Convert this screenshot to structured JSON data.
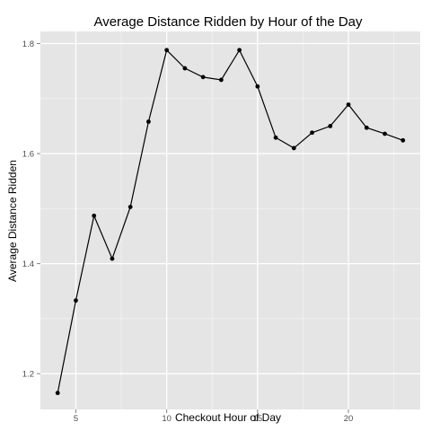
{
  "chart_data": {
    "type": "line",
    "title": "Average Distance Ridden by Hour of the Day",
    "xlabel": "Checkout Hour of Day",
    "ylabel": "Average Distance Ridden",
    "xlim": [
      3.05,
      23.95
    ],
    "ylim": [
      1.135,
      1.822
    ],
    "x_ticks": [
      5,
      10,
      15,
      20
    ],
    "y_ticks": [
      1.2,
      1.4,
      1.6,
      1.8
    ],
    "x_tick_labels": [
      "5",
      "10",
      "15",
      "20"
    ],
    "y_tick_labels": [
      "1.2",
      "1.4",
      "1.6",
      "1.8"
    ],
    "grid": true,
    "series": [
      {
        "x": [
          4,
          5,
          6,
          7,
          8,
          9,
          10,
          11,
          12,
          13,
          14,
          15,
          16,
          17,
          18,
          19,
          20,
          21,
          22,
          23
        ],
        "y": [
          1.165,
          1.333,
          1.487,
          1.409,
          1.503,
          1.658,
          1.788,
          1.755,
          1.739,
          1.734,
          1.788,
          1.722,
          1.629,
          1.61,
          1.638,
          1.65,
          1.689,
          1.647,
          1.636,
          1.624
        ]
      }
    ],
    "colors": {
      "panel": "#e5e5e5",
      "grid_major": "#ffffff",
      "grid_minor": "#f2f2f2",
      "line": "#000000",
      "point": "#000000"
    }
  }
}
